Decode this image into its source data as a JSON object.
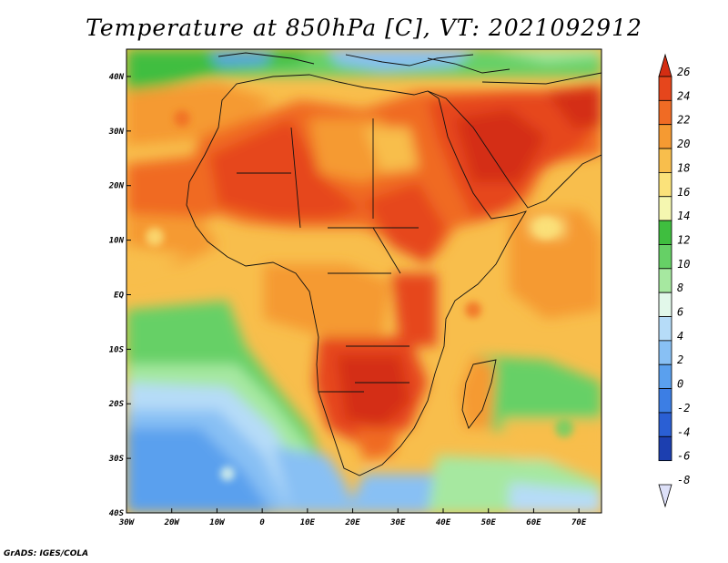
{
  "title": "Temperature at 850hPa [C], VT: 2021092912",
  "credit": "GrADS: IGES/COLA",
  "map": {
    "lon_range": [
      -30,
      75
    ],
    "lat_range": [
      -40,
      45
    ],
    "lon_ticks": [
      "30W",
      "20W",
      "10W",
      "0",
      "10E",
      "20E",
      "30E",
      "40E",
      "50E",
      "60E",
      "70E"
    ],
    "lat_ticks": [
      "40N",
      "30N",
      "20N",
      "10N",
      "EQ",
      "10S",
      "20S",
      "30S",
      "40S"
    ]
  },
  "colorbar": {
    "labels": [
      "26",
      "24",
      "22",
      "20",
      "18",
      "16",
      "14",
      "12",
      "10",
      "8",
      "6",
      "4",
      "2",
      "0",
      "-2",
      "-4",
      "-6",
      "-8"
    ],
    "colors": [
      "#d42d12",
      "#e6461c",
      "#f06b24",
      "#f59a32",
      "#f8be4c",
      "#fbe27a",
      "#f5f7b0",
      "#3fbe3f",
      "#66d066",
      "#a6e8a0",
      "#e2f8ea",
      "#b6dcf8",
      "#88c0f4",
      "#5aa0ee",
      "#3c7ee4",
      "#2a5fd4",
      "#1c3fb0",
      "#102080"
    ]
  }
}
